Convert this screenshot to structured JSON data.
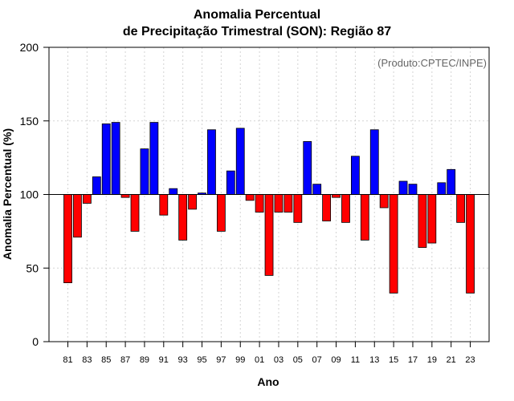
{
  "chart_data": {
    "type": "bar",
    "title_line1": "Anomalia Percentual",
    "title_line2": "de Precipitação Trimestral (SON): Região 87",
    "xlabel": "Ano",
    "ylabel": "Anomalia Percentual (%)",
    "source_note": "(Produto:CPTEC/INPE)",
    "ylim": [
      0,
      200
    ],
    "yticks": [
      0,
      50,
      100,
      150,
      200
    ],
    "baseline": 100,
    "xtick_labels": [
      "81",
      "83",
      "85",
      "87",
      "89",
      "91",
      "93",
      "95",
      "97",
      "99",
      "01",
      "03",
      "05",
      "07",
      "09",
      "11",
      "13",
      "15",
      "17",
      "19",
      "21",
      "23"
    ],
    "categories": [
      "1981",
      "1982",
      "1983",
      "1984",
      "1985",
      "1986",
      "1987",
      "1988",
      "1989",
      "1990",
      "1991",
      "1992",
      "1993",
      "1994",
      "1995",
      "1996",
      "1997",
      "1998",
      "1999",
      "2000",
      "2001",
      "2002",
      "2003",
      "2004",
      "2005",
      "2006",
      "2007",
      "2008",
      "2009",
      "2010",
      "2011",
      "2012",
      "2013",
      "2014",
      "2015",
      "2016",
      "2017",
      "2018",
      "2019",
      "2020",
      "2021",
      "2022",
      "2023"
    ],
    "values": [
      40,
      71,
      94,
      112,
      148,
      149,
      98,
      75,
      131,
      149,
      86,
      104,
      69,
      90,
      101,
      144,
      75,
      116,
      145,
      96,
      88,
      45,
      88,
      88,
      81,
      136,
      107,
      82,
      98,
      81,
      126,
      69,
      144,
      91,
      33,
      109,
      107,
      64,
      67,
      108,
      117,
      81,
      33
    ],
    "colors": {
      "above": "#0000ff",
      "below": "#ff0000",
      "grid": "#d3d3d3"
    }
  }
}
